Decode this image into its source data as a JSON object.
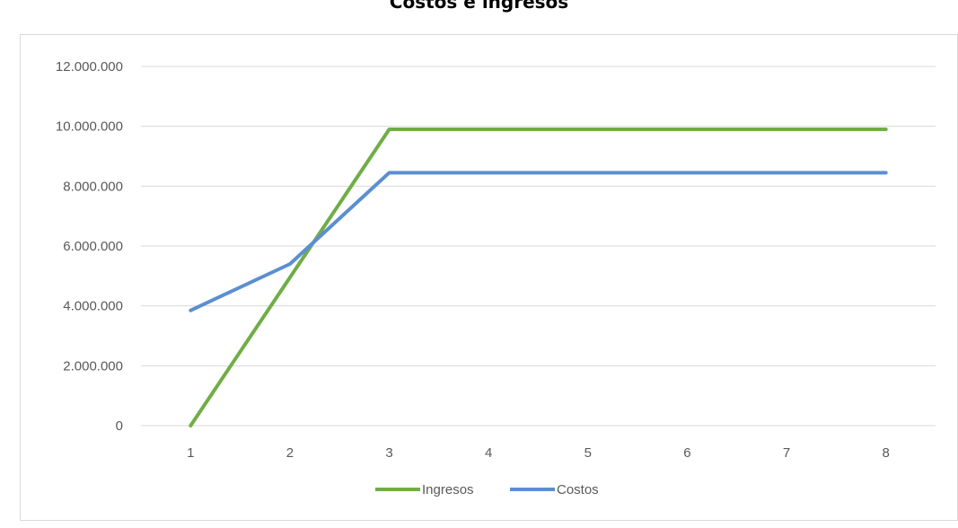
{
  "chart_data": {
    "type": "line",
    "title": "Costos e ingresos",
    "xlabel": "",
    "ylabel": "",
    "x": [
      "1",
      "2",
      "3",
      "4",
      "5",
      "6",
      "7",
      "8"
    ],
    "ylim": [
      0,
      12000000
    ],
    "yticks": [
      0,
      2000000,
      4000000,
      6000000,
      8000000,
      10000000,
      12000000
    ],
    "ytick_labels": [
      "0",
      "2.000.000",
      "4.000.000",
      "6.000.000",
      "8.000.000",
      "10.000.000",
      "12.000.000"
    ],
    "grid": true,
    "legend_position": "bottom",
    "series": [
      {
        "name": "Ingresos",
        "color": "#70ad47",
        "values": [
          0,
          4950000,
          9900000,
          9900000,
          9900000,
          9900000,
          9900000,
          9900000
        ]
      },
      {
        "name": "Costos",
        "color": "#5b8fd0",
        "values": [
          3850000,
          5400000,
          8450000,
          8450000,
          8450000,
          8450000,
          8450000,
          8450000
        ]
      }
    ]
  }
}
